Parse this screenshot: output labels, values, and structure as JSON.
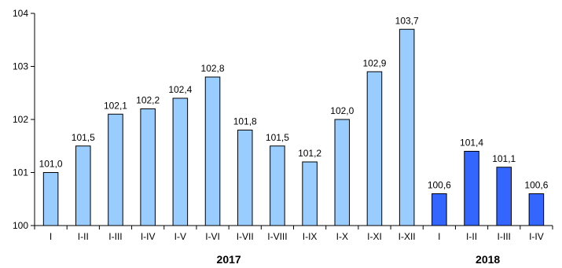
{
  "chart_data": {
    "type": "bar",
    "categories": [
      "I",
      "I-II",
      "I-III",
      "I-IV",
      "I-V",
      "I-VI",
      "I-VII",
      "I-VIII",
      "I-IX",
      "I-X",
      "I-XI",
      "I-XII",
      "I",
      "I-II",
      "I-III",
      "I-IV"
    ],
    "values": [
      101.0,
      101.5,
      102.1,
      102.2,
      102.4,
      102.8,
      101.8,
      101.5,
      101.2,
      102.0,
      102.9,
      103.7,
      100.6,
      101.4,
      101.1,
      100.6
    ],
    "value_labels": [
      "101,0",
      "101,5",
      "102,1",
      "102,2",
      "102,4",
      "102,8",
      "101,8",
      "101,5",
      "101,2",
      "102,0",
      "102,9",
      "103,7",
      "100,6",
      "101,4",
      "101,1",
      "100,6"
    ],
    "groups": [
      {
        "label": "2017",
        "start_index": 0,
        "end_index": 11,
        "color": "#99ccff"
      },
      {
        "label": "2018",
        "start_index": 12,
        "end_index": 15,
        "color": "#3366ff"
      }
    ],
    "title": "",
    "xlabel": "",
    "ylabel": "",
    "ylim": [
      100,
      104
    ],
    "yticks": [
      100,
      101,
      102,
      103,
      104
    ],
    "grid": false,
    "legend": "none",
    "bar_border_color": "#000000"
  }
}
